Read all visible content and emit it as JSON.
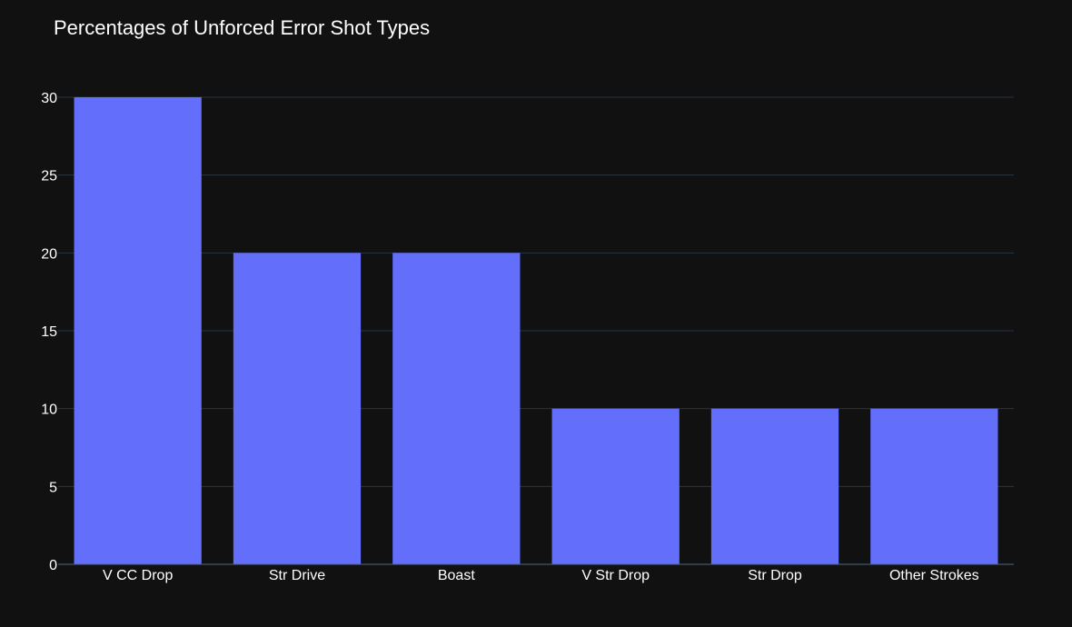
{
  "chart_data": {
    "type": "bar",
    "title": "Percentages of Unforced Error Shot Types",
    "categories": [
      "V CC Drop",
      "Str Drive",
      "Boast",
      "V Str Drop",
      "Str Drop",
      "Other Strokes"
    ],
    "values": [
      30,
      20,
      20,
      10,
      10,
      10
    ],
    "xlabel": "",
    "ylabel": "",
    "ylim": [
      0,
      30
    ],
    "yticks": [
      0,
      5,
      10,
      15,
      20,
      25,
      30
    ],
    "grid": true,
    "legend": "none",
    "colors": {
      "background": "#111111",
      "bar": "#636efa",
      "grid": "#283442",
      "text": "#ffffff"
    }
  }
}
